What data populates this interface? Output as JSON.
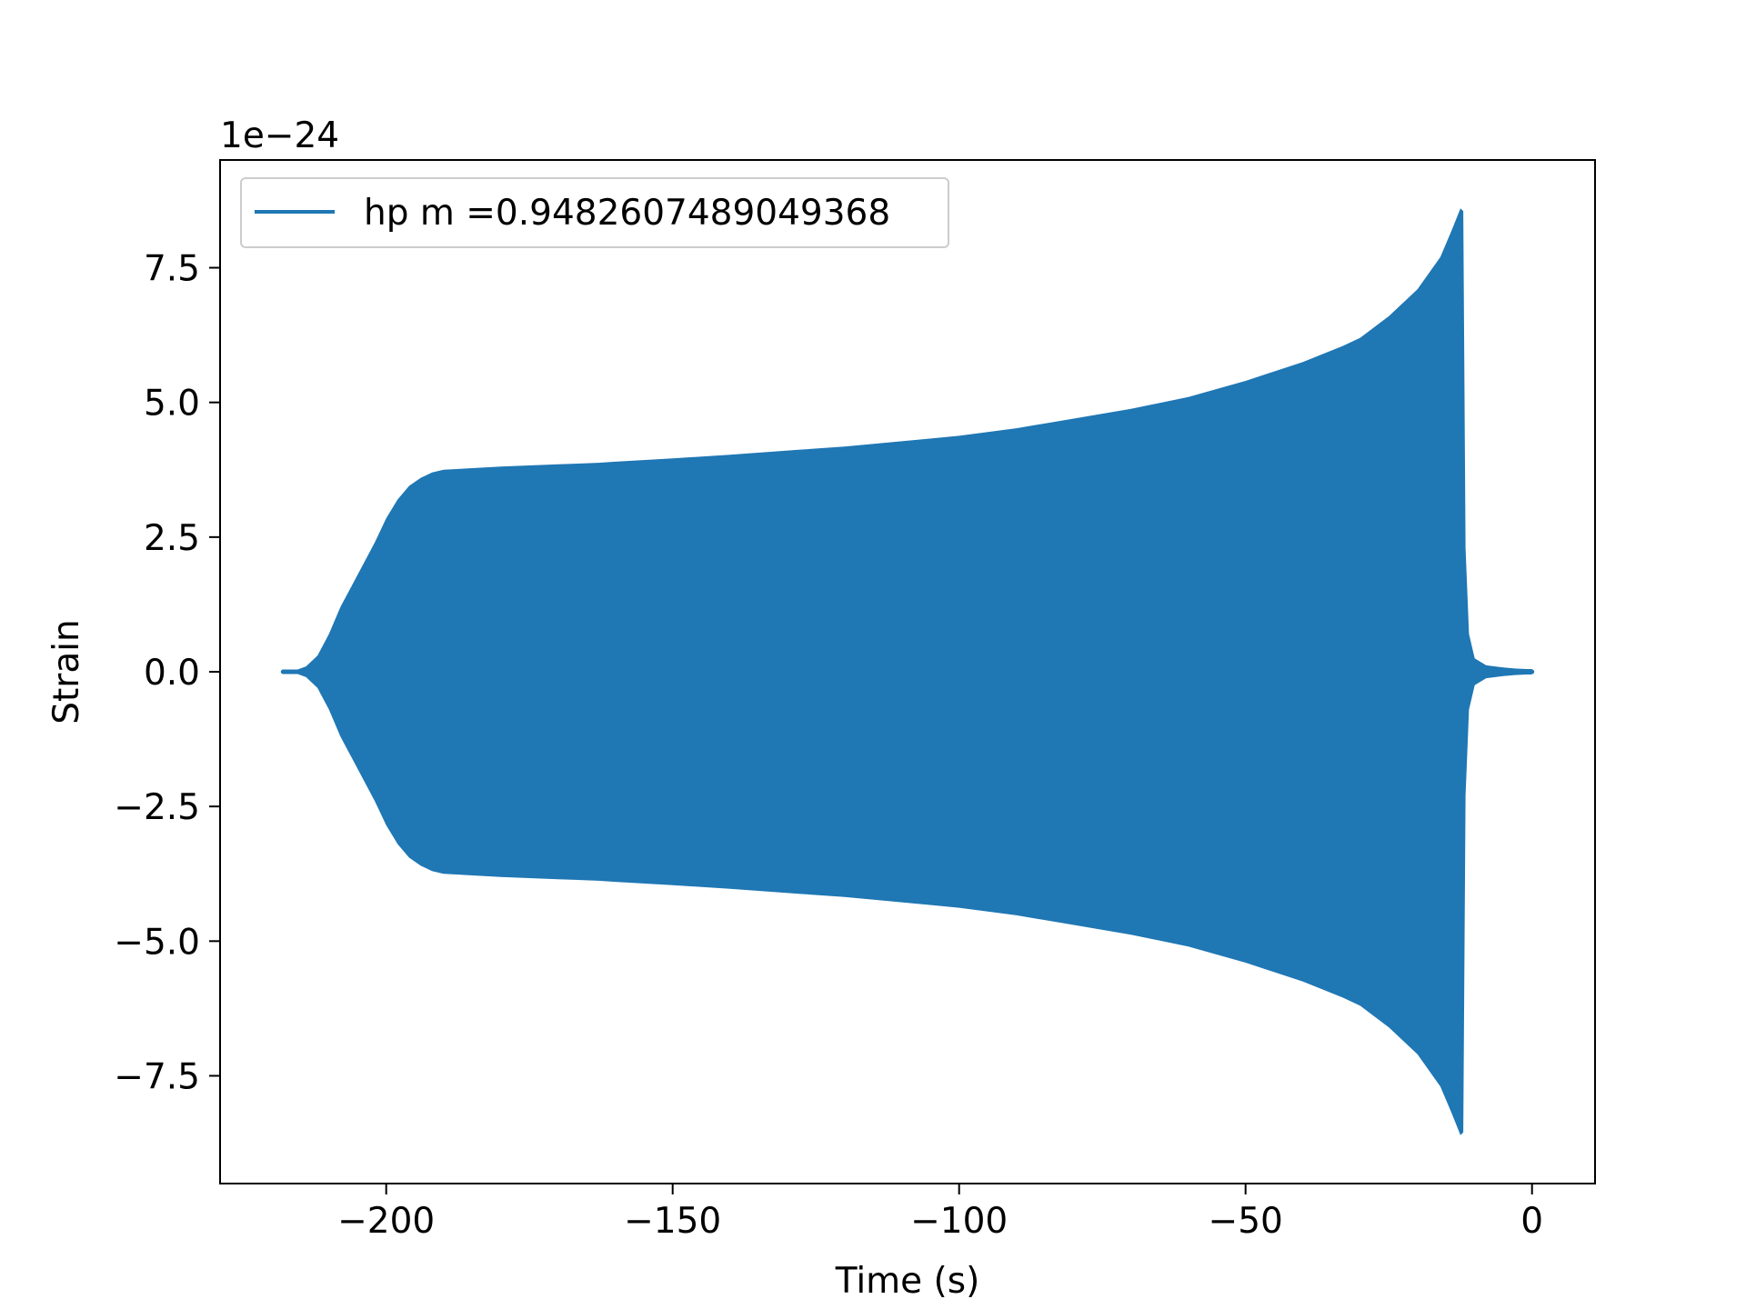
{
  "chart_data": {
    "type": "line",
    "title": "",
    "xlabel": "Time (s)",
    "ylabel": "Strain",
    "offset_text": "1e−24",
    "y_scale_factor": 1e-24,
    "xlim": [
      -229,
      11
    ],
    "ylim": [
      -9.5,
      9.5
    ],
    "grid": false,
    "legend_position": "top-left",
    "x_ticks": [
      -200,
      -150,
      -100,
      -50,
      0
    ],
    "x_tick_labels": [
      "−200",
      "−150",
      "−100",
      "−50",
      "0"
    ],
    "y_ticks": [
      -7.5,
      -5.0,
      -2.5,
      0.0,
      2.5,
      5.0,
      7.5
    ],
    "y_tick_labels": [
      "−7.5",
      "−5.0",
      "−2.5",
      "0.0",
      "2.5",
      "5.0",
      "7.5"
    ],
    "series": [
      {
        "name": "hp m =0.9482607489049368",
        "color": "#1f77b4",
        "style": "dense oscillation filling symmetric amplitude envelope",
        "envelope_time": [
          -218,
          -216,
          -214,
          -212,
          -210,
          -208,
          -206,
          -204,
          -202,
          -200,
          -198,
          -196,
          -194,
          -192,
          -190,
          -185,
          -180,
          -170,
          -163,
          -160,
          -150,
          -140,
          -128,
          -120,
          -110,
          -100,
          -90,
          -80,
          -70,
          -60,
          -50,
          -40,
          -33,
          -30,
          -25,
          -20,
          -16,
          -14,
          -12.5,
          -12,
          -11.6,
          -11,
          -10,
          -8,
          -5,
          -3,
          -1,
          0
        ],
        "envelope_amplitude": [
          0.0,
          0.02,
          0.1,
          0.3,
          0.7,
          1.2,
          1.6,
          2.0,
          2.4,
          2.85,
          3.2,
          3.45,
          3.6,
          3.7,
          3.75,
          3.78,
          3.81,
          3.85,
          3.88,
          3.9,
          3.96,
          4.03,
          4.12,
          4.18,
          4.28,
          4.38,
          4.52,
          4.7,
          4.88,
          5.1,
          5.4,
          5.75,
          6.05,
          6.2,
          6.6,
          7.1,
          7.7,
          8.2,
          8.6,
          8.55,
          2.3,
          0.7,
          0.25,
          0.12,
          0.08,
          0.06,
          0.05,
          0.05
        ]
      }
    ]
  }
}
